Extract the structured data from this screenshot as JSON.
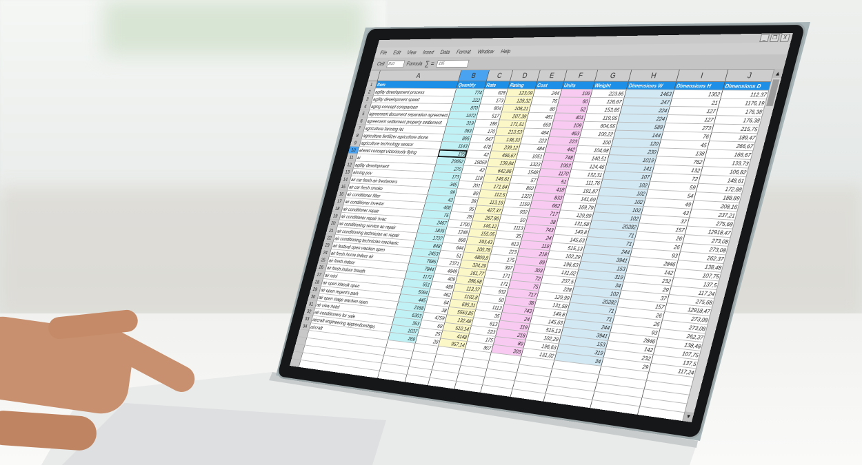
{
  "window": {
    "minimize_icon": "minimize-icon",
    "restore_icon": "restore-icon",
    "close_label": "X"
  },
  "menu": [
    "File",
    "Edit",
    "View",
    "Insert",
    "Data",
    "Format",
    "Window",
    "Help"
  ],
  "toolbar": {
    "cell_label": "Cell",
    "cell_value": "B10",
    "formula_label": "Formula",
    "sigma": "∑ =",
    "formula_value": "195"
  },
  "columns": [
    "A",
    "B",
    "C",
    "D",
    "E",
    "F",
    "G",
    "H",
    "I",
    "J"
  ],
  "selected_column": "B",
  "selected_row": 10,
  "headers": [
    "Item",
    "Quantity",
    "Rate",
    "Rating",
    "Cost",
    "Units",
    "Weight",
    "Dimensions W",
    "Dimensions H",
    "Dimensions D"
  ],
  "colors": {
    "header_row": "#1e8fe6",
    "quantity_col": "#bff1f5",
    "rating_col": "#fbf7c6",
    "units_col": "#f8c9f1",
    "dim_w_col": "#d2e8f3",
    "selected": "#4aa3f0"
  },
  "rows": {
    "item": [
      "agility development process",
      "agility development speed",
      "aging concept comparison",
      "agreement document separation agreement",
      "agreement settlement property settlement",
      "agriculture farming iot",
      "agriculture fertilizer agriculture drone",
      "agriculture technology sensor",
      "ahead concept victoriously flying",
      "ai",
      "agility development",
      "aiming pov",
      "air car fresh air fresheners",
      "air car fresh smoke",
      "air conditioner filter",
      "air conditioner inverter",
      "air conditioner repair",
      "air conditioner repair hvac",
      "air conditioning service ac repair",
      "air conditioning technician ac repair",
      "air conditioning technician mechanic",
      "air festival open wacken open",
      "air fresh home indoor air",
      "air fresh indoor",
      "air fresh indoor breath",
      "air mini",
      "air open klassik open",
      "air open regent's park",
      "air open stage wacken open",
      "air view hotel",
      "air-conditioners for sale",
      "aircraft engineering apprenticeships",
      "aircraft"
    ],
    "quantity": [
      "774",
      "222",
      "870",
      "1072",
      "319",
      "363",
      "895",
      "1143",
      "195",
      "20652",
      "270",
      "173",
      "345",
      "99",
      "43",
      "406",
      "75",
      "2467",
      "1835",
      "1737",
      "848",
      "2453",
      "7685",
      "7844",
      "1172",
      "551",
      "5094",
      "445",
      "2168",
      "6303",
      "353",
      "1037",
      "269"
    ],
    "rate": [
      "628",
      "173",
      "804",
      "517",
      "186",
      "170",
      "647",
      "478",
      "42",
      "19059",
      "42",
      "118",
      "201",
      "89",
      "38",
      "95",
      "28",
      "1700",
      "1248",
      "898",
      "644",
      "51",
      "2371",
      "4849",
      "409",
      "489",
      "462",
      "64",
      "38",
      "4759",
      "69",
      "25",
      "28"
    ],
    "rating": [
      "123,09",
      "128,32",
      "108,21",
      "207,38",
      "171,51",
      "213,53",
      "138,33",
      "239,12",
      "466,67",
      "139,84",
      "642,86",
      "146,61",
      "171,64",
      "112,5",
      "113,16",
      "427,37",
      "267,86",
      "145,12",
      "155,05",
      "193,43",
      "100,78",
      "4809,8",
      "324,29",
      "161,77",
      "286,58",
      "113,37",
      "1102,8",
      "695,31",
      "5553,85",
      "132,48",
      "510,14",
      "4148",
      "957,14"
    ],
    "cost": [
      "244",
      "76",
      "80",
      "481",
      "659",
      "464",
      "223",
      "484",
      "1051",
      "1323",
      "1548",
      "57",
      "802",
      "1322",
      "1159",
      "932",
      "50",
      "1113",
      "35",
      "613",
      "223",
      "175",
      "397",
      "171",
      "171",
      "932",
      "50",
      "1113",
      "35",
      "613",
      "223",
      "175",
      "307"
    ],
    "units": [
      "109",
      "60",
      "52",
      "401",
      "109",
      "463",
      "223",
      "442",
      "748",
      "1063",
      "1170",
      "51",
      "418",
      "833",
      "662",
      "717",
      "38",
      "743",
      "24",
      "119",
      "218",
      "89",
      "303",
      "72",
      "75",
      "717",
      "38",
      "743",
      "24",
      "119",
      "218",
      "89",
      "303"
    ],
    "weight": [
      "223,85",
      "126,67",
      "153,85",
      "119,95",
      "604,55",
      "100,22",
      "100",
      "104,98",
      "140,51",
      "124,46",
      "132,31",
      "111,76",
      "191,87",
      "141,69",
      "169,79",
      "129,99",
      "131,58",
      "149,8",
      "145,63",
      "515,13",
      "102,29",
      "196,63",
      "131,02",
      "237,5",
      "228",
      "129,99",
      "131,58",
      "149,8",
      "145,63",
      "515,13",
      "102,29",
      "196,63",
      "131,02"
    ],
    "dim_w": [
      "1463",
      "247",
      "224",
      "224",
      "589",
      "144",
      "120",
      "230",
      "1019",
      "141",
      "107",
      "102",
      "102",
      "102",
      "102",
      "102",
      "20282",
      "71",
      "71",
      "244",
      "3941",
      "153",
      "319",
      "34",
      "102",
      "20282",
      "71",
      "71",
      "244",
      "3941",
      "153",
      "319",
      "34"
    ],
    "dim_h": [
      "1302",
      "21",
      "127",
      "127",
      "273",
      "76",
      "45",
      "138",
      "762",
      "132",
      "72",
      "59",
      "54",
      "49",
      "43",
      "37",
      "157",
      "26",
      "26",
      "93",
      "2846",
      "142",
      "232",
      "29",
      "37",
      "157",
      "26",
      "26",
      "93",
      "2846",
      "142",
      "232",
      "29"
    ],
    "dim_d": [
      "112,37",
      "1176,19",
      "176,38",
      "176,38",
      "215,75",
      "189,47",
      "266,67",
      "166,67",
      "133,73",
      "106,82",
      "148,61",
      "172,88",
      "188,89",
      "208,16",
      "237,21",
      "275,68",
      "12918,47",
      "273,08",
      "273,08",
      "262,37",
      "138,48",
      "107,75",
      "137,5",
      "117,24",
      "275,68",
      "12918,47",
      "273,08",
      "273,08",
      "262,37",
      "138,48",
      "107,75",
      "137,5",
      "117,24"
    ]
  }
}
